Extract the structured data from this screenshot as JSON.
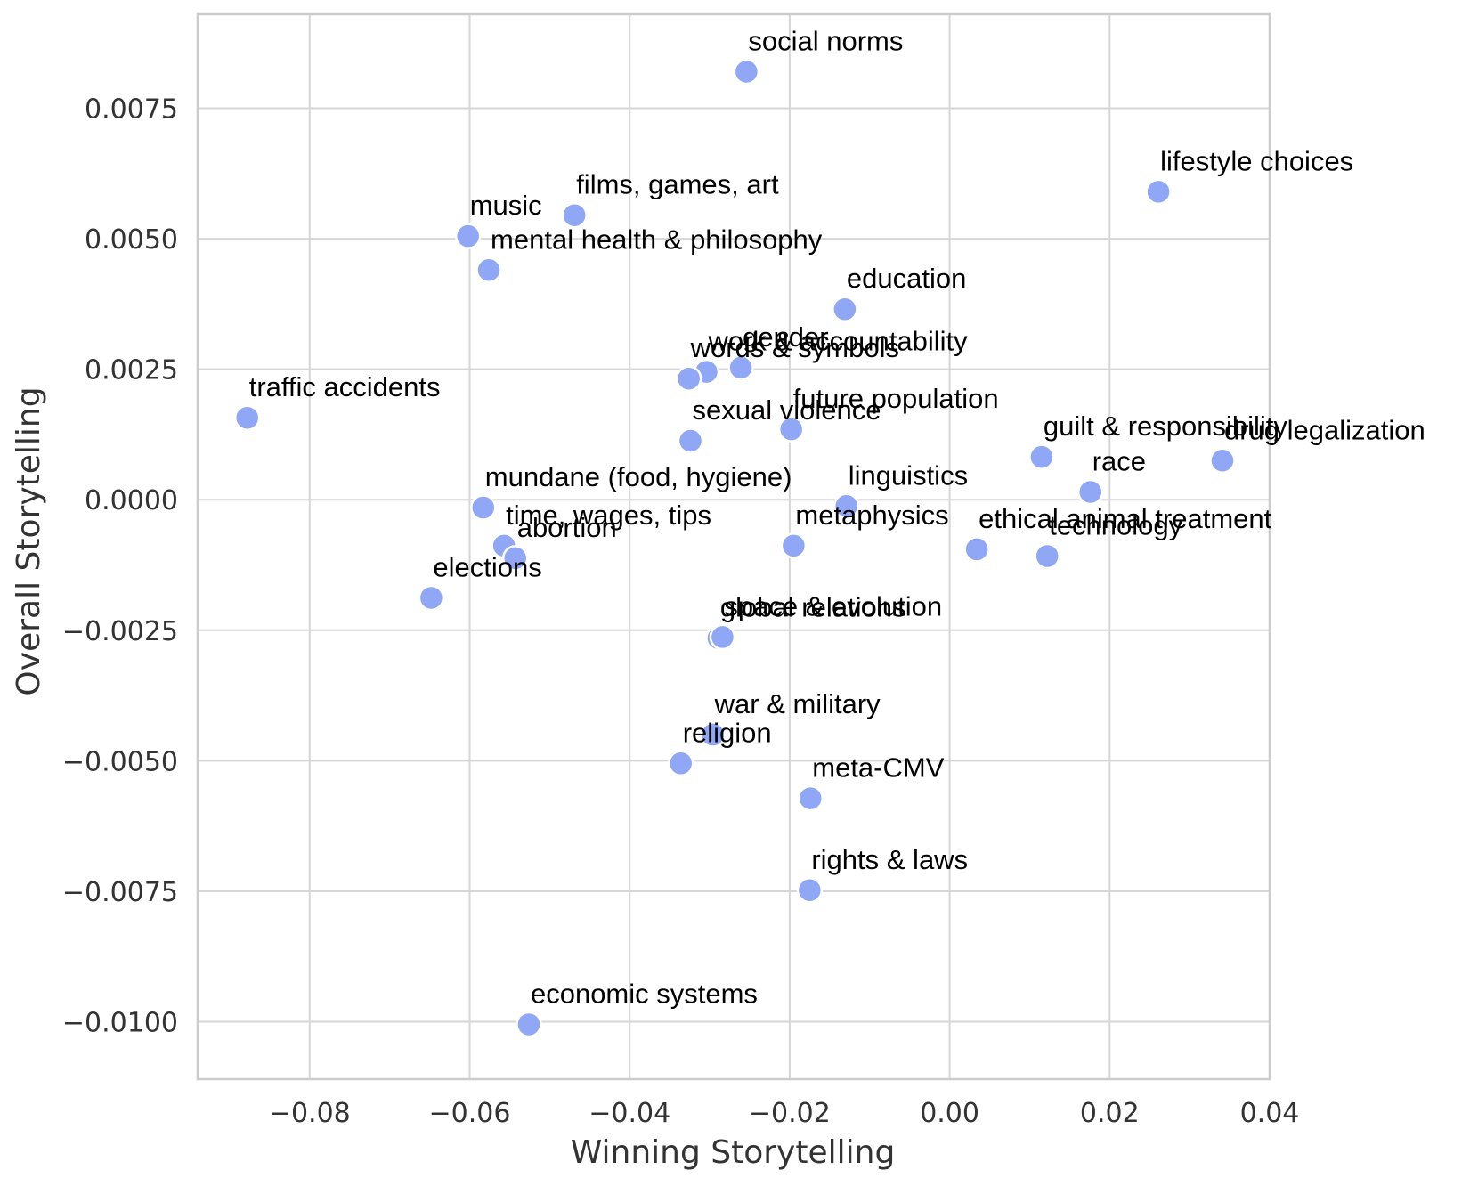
{
  "chart_data": {
    "type": "scatter",
    "title": "",
    "xlabel": "Winning Storytelling",
    "ylabel": "Overall Storytelling",
    "xlim": [
      -0.094,
      0.04
    ],
    "ylim": [
      -0.0111,
      0.0093
    ],
    "grid": true,
    "point_color": "#8fa7f5",
    "x_ticks": [
      {
        "value": -0.08,
        "label": "−0.08"
      },
      {
        "value": -0.06,
        "label": "−0.06"
      },
      {
        "value": -0.04,
        "label": "−0.04"
      },
      {
        "value": -0.02,
        "label": "−0.02"
      },
      {
        "value": 0.0,
        "label": "0.00"
      },
      {
        "value": 0.02,
        "label": "0.02"
      },
      {
        "value": 0.04,
        "label": "0.04"
      }
    ],
    "y_ticks": [
      {
        "value": 0.0075,
        "label": "0.0075"
      },
      {
        "value": 0.005,
        "label": "0.0050"
      },
      {
        "value": 0.0025,
        "label": "0.0025"
      },
      {
        "value": 0.0,
        "label": "0.0000"
      },
      {
        "value": -0.0025,
        "label": "−0.0025"
      },
      {
        "value": -0.005,
        "label": "−0.0050"
      },
      {
        "value": -0.0075,
        "label": "−0.0075"
      },
      {
        "value": -0.01,
        "label": "−0.0100"
      }
    ],
    "points": [
      {
        "label": "social norms",
        "x": -0.0254,
        "y": 0.0082
      },
      {
        "label": "lifestyle choices",
        "x": 0.0261,
        "y": 0.0059
      },
      {
        "label": "films, games, art",
        "x": -0.0469,
        "y": 0.00545
      },
      {
        "label": "music",
        "x": -0.0602,
        "y": 0.00505
      },
      {
        "label": "mental health & philosophy",
        "x": -0.0576,
        "y": 0.0044
      },
      {
        "label": "education",
        "x": -0.0131,
        "y": 0.00365
      },
      {
        "label": "gender",
        "x": -0.0261,
        "y": 0.00253
      },
      {
        "label": "work & accountability",
        "x": -0.0304,
        "y": 0.00245
      },
      {
        "label": "words & symbols",
        "x": -0.0326,
        "y": 0.00232
      },
      {
        "label": "traffic accidents",
        "x": -0.0878,
        "y": 0.00157
      },
      {
        "label": "future population",
        "x": -0.0198,
        "y": 0.00135
      },
      {
        "label": "sexual violence",
        "x": -0.0324,
        "y": 0.00113
      },
      {
        "label": "guilt & responsibility",
        "x": 0.0115,
        "y": 0.00082
      },
      {
        "label": "drug legalization",
        "x": 0.0341,
        "y": 0.00075
      },
      {
        "label": "race",
        "x": 0.0176,
        "y": 0.00015
      },
      {
        "label": "linguistics",
        "x": -0.0129,
        "y": -0.00012
      },
      {
        "label": "mundane (food, hygiene)",
        "x": -0.0583,
        "y": -0.00015
      },
      {
        "label": "time, wages, tips",
        "x": -0.0557,
        "y": -0.00088
      },
      {
        "label": "metaphysics",
        "x": -0.0195,
        "y": -0.00088
      },
      {
        "label": "abortion",
        "x": -0.0543,
        "y": -0.00112
      },
      {
        "label": "ethical animal treatment",
        "x": 0.0034,
        "y": -0.00095
      },
      {
        "label": "technology",
        "x": 0.0122,
        "y": -0.00108
      },
      {
        "label": "elections",
        "x": -0.0648,
        "y": -0.00188
      },
      {
        "label": "global relations",
        "x": -0.0289,
        "y": -0.00265
      },
      {
        "label": "space & evolution",
        "x": -0.0284,
        "y": -0.00263
      },
      {
        "label": "war & military",
        "x": -0.0296,
        "y": -0.0045
      },
      {
        "label": "religion",
        "x": -0.0336,
        "y": -0.00505
      },
      {
        "label": "meta-CMV",
        "x": -0.0174,
        "y": -0.00572
      },
      {
        "label": "rights & laws",
        "x": -0.0175,
        "y": -0.00748
      },
      {
        "label": "economic systems",
        "x": -0.0526,
        "y": -0.01005
      }
    ]
  }
}
